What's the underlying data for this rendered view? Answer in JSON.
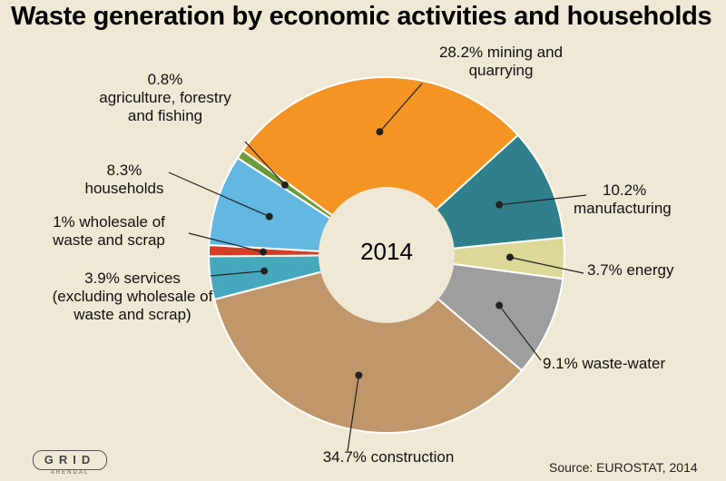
{
  "chart_data": {
    "type": "pie",
    "title": "Waste generation by economic activities and households",
    "center_label": "2014",
    "source": "Source: EUROSTAT, 2014",
    "slices": [
      {
        "name": "mining and quarrying",
        "value": 28.2,
        "label_value": "28.2%",
        "color": "#f39423"
      },
      {
        "name": "manufacturing",
        "value": 10.2,
        "label_value": "10.2%",
        "color": "#2f7f8c"
      },
      {
        "name": "energy",
        "value": 3.7,
        "label_value": "3.7%",
        "color": "#dcd898"
      },
      {
        "name": "waste-water",
        "value": 9.1,
        "label_value": "9.1%",
        "color": "#9e9e9e"
      },
      {
        "name": "construction",
        "value": 34.7,
        "label_value": "34.7%",
        "color": "#bf976a"
      },
      {
        "name": "services (excluding wholesale of waste and scrap)",
        "value": 3.9,
        "label_value": "3.9%",
        "color": "#46a8bd"
      },
      {
        "name": "wholesale of waste and scrap",
        "value": 1.0,
        "label_value": "1%",
        "color": "#d33f26"
      },
      {
        "name": "households",
        "value": 8.3,
        "label_value": "8.3%",
        "color": "#62b8e0"
      },
      {
        "name": "agriculture, forestry and fishing",
        "value": 0.8,
        "label_value": "0.8%",
        "color": "#6e9a3a"
      }
    ]
  },
  "labels": {
    "mining": [
      "28.2% mining and",
      "quarrying"
    ],
    "manufacturing": [
      "10.2%",
      "manufacturing"
    ],
    "energy": [
      "3.7% energy"
    ],
    "wastewater": [
      "9.1% waste-water"
    ],
    "construction": [
      "34.7% construction"
    ],
    "services": [
      "3.9% services",
      "(excluding wholesale of",
      "waste and scrap)"
    ],
    "wholesale": [
      "1% wholesale of",
      "waste and scrap"
    ],
    "households": [
      "8.3%",
      "households"
    ],
    "agriculture": [
      "0.8%",
      "agriculture, forestry",
      "and fishing"
    ]
  },
  "logo": {
    "text": "GRID",
    "subtext": "ARENDAL"
  }
}
